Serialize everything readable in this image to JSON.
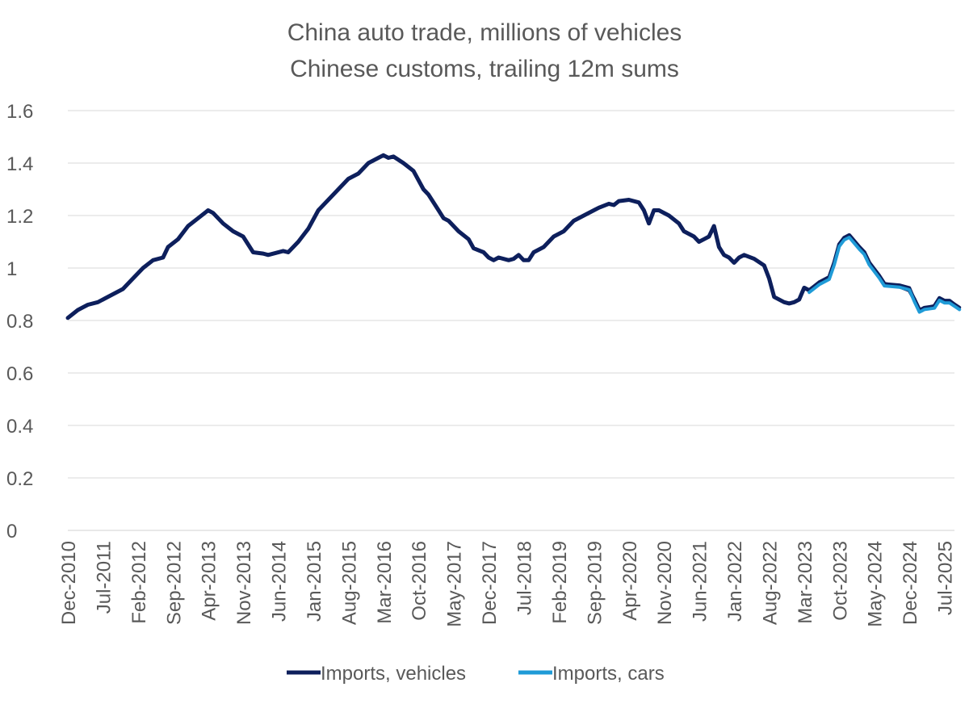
{
  "chart_data": {
    "type": "line",
    "title": "China auto trade, millions of vehicles",
    "subtitle": "Chinese customs, trailing 12m sums",
    "xlabel": "",
    "ylabel": "",
    "ylim": [
      0,
      1.6
    ],
    "y_ticks": [
      0,
      0.2,
      0.4,
      0.6,
      0.8,
      1,
      1.2,
      1.4,
      1.6
    ],
    "y_tick_labels": [
      "0",
      "0.2",
      "0.4",
      "0.6",
      "0.8",
      "1",
      "1.2",
      "1.4",
      "1.6"
    ],
    "grid": true,
    "legend_position": "bottom",
    "x_tick_labels": [
      "Dec-2010",
      "Jul-2011",
      "Feb-2012",
      "Sep-2012",
      "Apr-2013",
      "Nov-2013",
      "Jun-2014",
      "Jan-2015",
      "Aug-2015",
      "Mar-2016",
      "Oct-2016",
      "May-2017",
      "Dec-2017",
      "Jul-2018",
      "Feb-2019",
      "Sep-2019",
      "Apr-2020",
      "Nov-2020",
      "Jun-2021",
      "Jan-2022",
      "Aug-2022",
      "Mar-2023",
      "Oct-2023",
      "May-2024",
      "Dec-2024",
      "Jul-2025"
    ],
    "x_start": "Dec-2010",
    "months_count": 178,
    "series": [
      {
        "name": "Imports, vehicles",
        "color": "#0d1f5c",
        "start_month_index": 0,
        "points": [
          [
            0,
            0.81
          ],
          [
            2,
            0.84
          ],
          [
            4,
            0.86
          ],
          [
            6,
            0.87
          ],
          [
            9,
            0.9
          ],
          [
            11,
            0.92
          ],
          [
            13,
            0.96
          ],
          [
            15,
            1.0
          ],
          [
            17,
            1.03
          ],
          [
            19,
            1.04
          ],
          [
            20,
            1.08
          ],
          [
            22,
            1.11
          ],
          [
            24,
            1.16
          ],
          [
            26,
            1.19
          ],
          [
            28,
            1.22
          ],
          [
            29,
            1.21
          ],
          [
            31,
            1.17
          ],
          [
            33,
            1.14
          ],
          [
            35,
            1.12
          ],
          [
            37,
            1.06
          ],
          [
            39,
            1.055
          ],
          [
            40,
            1.05
          ],
          [
            43,
            1.065
          ],
          [
            44,
            1.06
          ],
          [
            46,
            1.1
          ],
          [
            48,
            1.15
          ],
          [
            50,
            1.22
          ],
          [
            52,
            1.26
          ],
          [
            54,
            1.3
          ],
          [
            56,
            1.34
          ],
          [
            58,
            1.36
          ],
          [
            60,
            1.4
          ],
          [
            62,
            1.42
          ],
          [
            63,
            1.43
          ],
          [
            64,
            1.42
          ],
          [
            65,
            1.425
          ],
          [
            67,
            1.4
          ],
          [
            69,
            1.37
          ],
          [
            71,
            1.3
          ],
          [
            72,
            1.28
          ],
          [
            74,
            1.22
          ],
          [
            75,
            1.19
          ],
          [
            76,
            1.18
          ],
          [
            78,
            1.14
          ],
          [
            80,
            1.11
          ],
          [
            81,
            1.075
          ],
          [
            83,
            1.06
          ],
          [
            84,
            1.04
          ],
          [
            85,
            1.03
          ],
          [
            86,
            1.04
          ],
          [
            88,
            1.03
          ],
          [
            89,
            1.035
          ],
          [
            90,
            1.05
          ],
          [
            91,
            1.03
          ],
          [
            92,
            1.03
          ],
          [
            93,
            1.06
          ],
          [
            95,
            1.08
          ],
          [
            97,
            1.12
          ],
          [
            99,
            1.14
          ],
          [
            101,
            1.18
          ],
          [
            103,
            1.2
          ],
          [
            105,
            1.22
          ],
          [
            106,
            1.23
          ],
          [
            108,
            1.245
          ],
          [
            109,
            1.24
          ],
          [
            110,
            1.255
          ],
          [
            112,
            1.26
          ],
          [
            114,
            1.25
          ],
          [
            115,
            1.22
          ],
          [
            116,
            1.17
          ],
          [
            117,
            1.22
          ],
          [
            118,
            1.22
          ],
          [
            120,
            1.2
          ],
          [
            122,
            1.17
          ],
          [
            123,
            1.14
          ],
          [
            125,
            1.12
          ],
          [
            126,
            1.1
          ],
          [
            127,
            1.11
          ],
          [
            128,
            1.12
          ],
          [
            129,
            1.16
          ],
          [
            130,
            1.08
          ],
          [
            131,
            1.05
          ],
          [
            132,
            1.04
          ],
          [
            133,
            1.02
          ],
          [
            134,
            1.04
          ],
          [
            135,
            1.05
          ],
          [
            137,
            1.035
          ],
          [
            139,
            1.01
          ],
          [
            140,
            0.96
          ],
          [
            141,
            0.89
          ],
          [
            143,
            0.87
          ],
          [
            144,
            0.865
          ],
          [
            145,
            0.87
          ],
          [
            146,
            0.88
          ],
          [
            147,
            0.925
          ],
          [
            148,
            0.915
          ],
          [
            149,
            0.93
          ],
          [
            150,
            0.945
          ],
          [
            152,
            0.965
          ],
          [
            153,
            1.02
          ],
          [
            154,
            1.09
          ],
          [
            155,
            1.115
          ],
          [
            156,
            1.125
          ],
          [
            158,
            1.08
          ],
          [
            159,
            1.06
          ],
          [
            160,
            1.02
          ],
          [
            162,
            0.97
          ],
          [
            163,
            0.94
          ],
          [
            164,
            0.935
          ],
          [
            166,
            0.93
          ],
          [
            168,
            0.915
          ],
          [
            169,
            0.88
          ],
          [
            170,
            0.84
          ],
          [
            172,
            0.85
          ],
          [
            173,
            0.855
          ],
          [
            174,
            0.885
          ],
          [
            175,
            0.875
          ],
          [
            176,
            0.875
          ],
          [
            177,
            0.86
          ]
        ],
        "tail_points": [
          [
            148,
            0.915
          ],
          [
            150,
            0.945
          ],
          [
            152,
            0.965
          ],
          [
            153,
            1.02
          ],
          [
            154,
            1.09
          ],
          [
            155,
            1.115
          ],
          [
            156,
            1.125
          ],
          [
            158,
            1.08
          ],
          [
            159,
            1.06
          ],
          [
            160,
            1.02
          ],
          [
            162,
            0.97
          ],
          [
            163,
            0.94
          ],
          [
            166,
            0.935
          ],
          [
            168,
            0.925
          ],
          [
            169,
            0.88
          ],
          [
            170,
            0.84
          ],
          [
            171,
            0.85
          ],
          [
            173,
            0.855
          ],
          [
            174,
            0.885
          ],
          [
            175,
            0.875
          ],
          [
            176,
            0.875
          ],
          [
            178,
            0.85
          ]
        ]
      }
    ]
  },
  "legend": {
    "vehicles_label": "Imports, vehicles",
    "cars_label": "Imports, cars"
  }
}
